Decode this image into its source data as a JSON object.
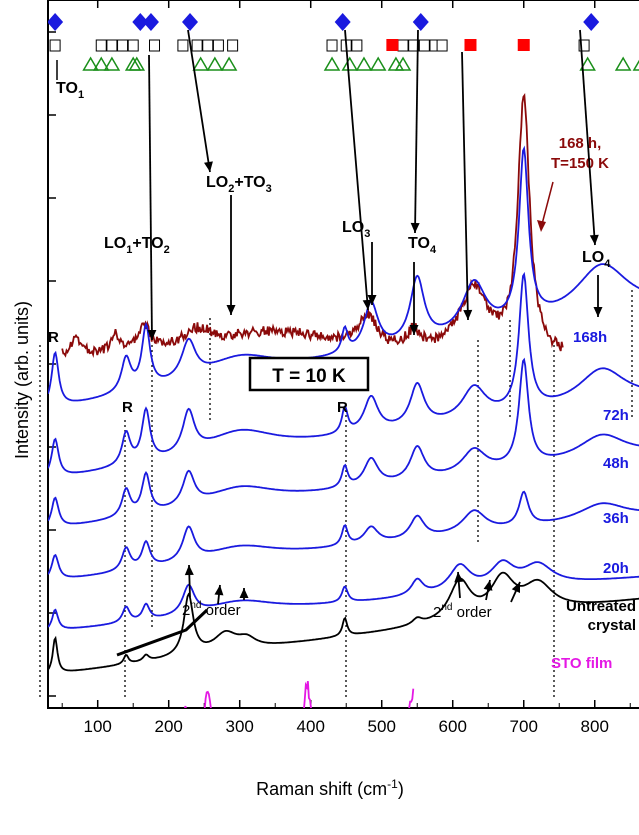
{
  "chart_data": {
    "type": "line",
    "title": "",
    "xlabel": "Raman shift (cm⁻¹)",
    "xlabel_base": "Raman shift (cm",
    "xlabel_sup": "-1",
    "xlabel_end": ")",
    "ylabel": "Intensity (arb. units)",
    "xlim": [
      30,
      870
    ],
    "x_ticks": [
      100,
      200,
      300,
      400,
      500,
      600,
      700,
      800
    ],
    "y_ticks_visible": false,
    "temperature_label": "T = 10 K",
    "series": [
      {
        "name": "168 h, T=150 K",
        "color": "#8b0a0a",
        "x_range": [
          50,
          755
        ],
        "peaks": [
          [
            70,
            0.5,
            10
          ],
          [
            125,
            0.6,
            8
          ],
          [
            165,
            0.9,
            10
          ],
          [
            240,
            0.6,
            25
          ],
          [
            350,
            0.9,
            110
          ],
          [
            480,
            1.1,
            15
          ],
          [
            545,
            0.6,
            12
          ],
          [
            630,
            2.2,
            25
          ],
          [
            700,
            8.5,
            10
          ]
        ]
      },
      {
        "name": "168h",
        "color": "#1a1adf",
        "peaks": [
          [
            40,
            1.6,
            6
          ],
          [
            140,
            1.0,
            8
          ],
          [
            168,
            1.8,
            7
          ],
          [
            228,
            1.1,
            12
          ],
          [
            300,
            0.6,
            60
          ],
          [
            448,
            0.7,
            5
          ],
          [
            485,
            1.4,
            12
          ],
          [
            550,
            1.9,
            12
          ],
          [
            630,
            1.5,
            20
          ],
          [
            700,
            5.0,
            8
          ],
          [
            810,
            1.5,
            45
          ]
        ]
      },
      {
        "name": "72h",
        "color": "#1a1adf",
        "peaks": [
          [
            40,
            1.2,
            6
          ],
          [
            140,
            1.0,
            7
          ],
          [
            168,
            1.6,
            7
          ],
          [
            228,
            1.3,
            10
          ],
          [
            300,
            0.7,
            60
          ],
          [
            448,
            0.8,
            5
          ],
          [
            485,
            1.1,
            12
          ],
          [
            550,
            1.3,
            12
          ],
          [
            630,
            1.0,
            20
          ],
          [
            700,
            4.2,
            8
          ],
          [
            810,
            1.1,
            40
          ]
        ]
      },
      {
        "name": "48h",
        "color": "#1a1adf",
        "peaks": [
          [
            40,
            1.0,
            6
          ],
          [
            140,
            0.9,
            7
          ],
          [
            168,
            1.3,
            7
          ],
          [
            228,
            1.1,
            10
          ],
          [
            300,
            0.6,
            60
          ],
          [
            448,
            0.7,
            5
          ],
          [
            485,
            0.9,
            12
          ],
          [
            550,
            1.1,
            12
          ],
          [
            630,
            0.8,
            20
          ],
          [
            700,
            3.5,
            8
          ],
          [
            810,
            0.8,
            40
          ]
        ]
      },
      {
        "name": "36h",
        "color": "#1a1adf",
        "peaks": [
          [
            40,
            0.9,
            6
          ],
          [
            140,
            0.8,
            7
          ],
          [
            168,
            0.9,
            7
          ],
          [
            228,
            1.2,
            10
          ],
          [
            300,
            0.5,
            60
          ],
          [
            448,
            0.7,
            5
          ],
          [
            485,
            0.6,
            12
          ],
          [
            550,
            0.8,
            12
          ],
          [
            630,
            0.8,
            20
          ],
          [
            700,
            1.2,
            8
          ],
          [
            810,
            0.6,
            40
          ]
        ]
      },
      {
        "name": "20h",
        "color": "#1a1adf",
        "peaks": [
          [
            40,
            0.8,
            5
          ],
          [
            140,
            0.6,
            6
          ],
          [
            168,
            0.6,
            6
          ],
          [
            228,
            1.1,
            10
          ],
          [
            300,
            0.5,
            60
          ],
          [
            448,
            0.6,
            5
          ],
          [
            550,
            0.6,
            10
          ],
          [
            610,
            1.0,
            18
          ],
          [
            670,
            0.9,
            20
          ],
          [
            720,
            0.8,
            25
          ]
        ]
      },
      {
        "name": "Untreated crystal",
        "color": "#000000",
        "peaks": [
          [
            40,
            1.2,
            4
          ],
          [
            140,
            0.3,
            4
          ],
          [
            168,
            0.2,
            5
          ],
          [
            228,
            2.0,
            8
          ],
          [
            280,
            0.6,
            20
          ],
          [
            310,
            0.3,
            15
          ],
          [
            448,
            0.6,
            4
          ],
          [
            550,
            0.2,
            8
          ],
          [
            610,
            1.3,
            18
          ],
          [
            670,
            1.2,
            20
          ],
          [
            720,
            0.9,
            25
          ]
        ]
      },
      {
        "name": "STO film",
        "color": "#e418e4",
        "x_range": [
          30,
          545
        ],
        "peaks": [
          [
            40,
            0.5,
            6
          ],
          [
            125,
            0.8,
            6
          ],
          [
            170,
            1.0,
            6
          ],
          [
            222,
            1.2,
            8
          ],
          [
            255,
            1.6,
            6
          ],
          [
            395,
            2.0,
            6
          ],
          [
            545,
            1.7,
            10
          ],
          [
            620,
            0.5,
            30
          ]
        ]
      }
    ],
    "annotations": {
      "mode_labels": [
        {
          "base": "TO",
          "sub": "1"
        },
        {
          "base": "LO",
          "sub": "1",
          "mid": "+TO",
          "sub2": "2"
        },
        {
          "base": "LO",
          "sub": "2",
          "mid": "+TO",
          "sub2": "3"
        },
        {
          "base": "LO",
          "sub": "3"
        },
        {
          "base": "TO",
          "sub": "4"
        },
        {
          "base": "LO",
          "sub": "4"
        }
      ],
      "r_labels": [
        "R",
        "R",
        "R"
      ],
      "second_order_left": {
        "num": "2",
        "sup": "nd",
        "word": " order"
      },
      "second_order_right": {
        "num": "2",
        "sup": "nd",
        "word": " order"
      },
      "label_168h_150k_line1": "168 h,",
      "label_168h_150k_line2": "T=150 K",
      "untreated_line1": "Untreated",
      "untreated_line2": "crystal"
    },
    "top_markers": {
      "blue_diamonds": [
        40,
        160,
        175,
        230,
        445,
        555,
        795
      ],
      "red_squares": [
        515,
        625,
        700
      ],
      "open_squares": [
        40,
        105,
        120,
        135,
        150,
        180,
        220,
        240,
        255,
        270,
        290,
        430,
        450,
        465,
        530,
        545,
        560,
        575,
        585,
        785
      ],
      "green_triangles": [
        90,
        105,
        120,
        150,
        155,
        245,
        265,
        285,
        430,
        455,
        475,
        495,
        520,
        530,
        790,
        840,
        865
      ]
    }
  }
}
